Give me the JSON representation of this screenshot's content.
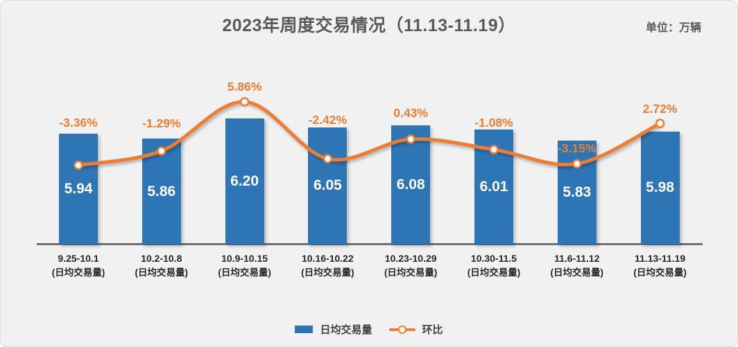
{
  "header": {
    "title": "2023年周度交易情况（11.13-11.19）",
    "unit": "单位：万辆"
  },
  "legend": {
    "bar_label": "日均交易量",
    "line_label": "环比"
  },
  "colors": {
    "bar": "#2E75B6",
    "line": "#ED7D31",
    "axis": "#6F6F6F",
    "title_text": "#595959",
    "bar_value_text": "#FFFFFF",
    "xlabel_text": "#262626",
    "background": "#F1F1F2"
  },
  "chart_data": {
    "type": "bar",
    "combo": "bar + smooth line (dual series)",
    "title": "2023年周度交易情况（11.13-11.19）",
    "unit": "万辆",
    "categories": [
      "9.25-10.1",
      "10.2-10.8",
      "10.9-10.15",
      "10.16-10.22",
      "10.23-10.29",
      "10.30-11.5",
      "11.6-11.12",
      "11.13-11.19"
    ],
    "category_sublabel": "(日均交易量)",
    "series": [
      {
        "name": "日均交易量",
        "type": "bar",
        "values": [
          5.94,
          5.86,
          6.2,
          6.05,
          6.08,
          6.01,
          5.83,
          5.98
        ],
        "labels": [
          "5.94",
          "5.86",
          "6.20",
          "6.05",
          "6.08",
          "6.01",
          "5.83",
          "5.98"
        ],
        "label_position": "inside-center"
      },
      {
        "name": "环比",
        "type": "line",
        "values_pct": [
          -3.36,
          -1.29,
          5.86,
          -2.42,
          0.43,
          -1.08,
          -3.15,
          2.72
        ],
        "labels": [
          "-3.36%",
          "-1.29%",
          "5.86%",
          "-2.42%",
          "0.43%",
          "-1.08%",
          "-3.15%",
          "2.72%"
        ],
        "label_position": "above-point",
        "marker": "white-filled circle with orange ring"
      }
    ],
    "xlabel": "",
    "ylabel": "",
    "y_axis_visible": false,
    "gridlines": false,
    "legend_position": "bottom-center"
  }
}
